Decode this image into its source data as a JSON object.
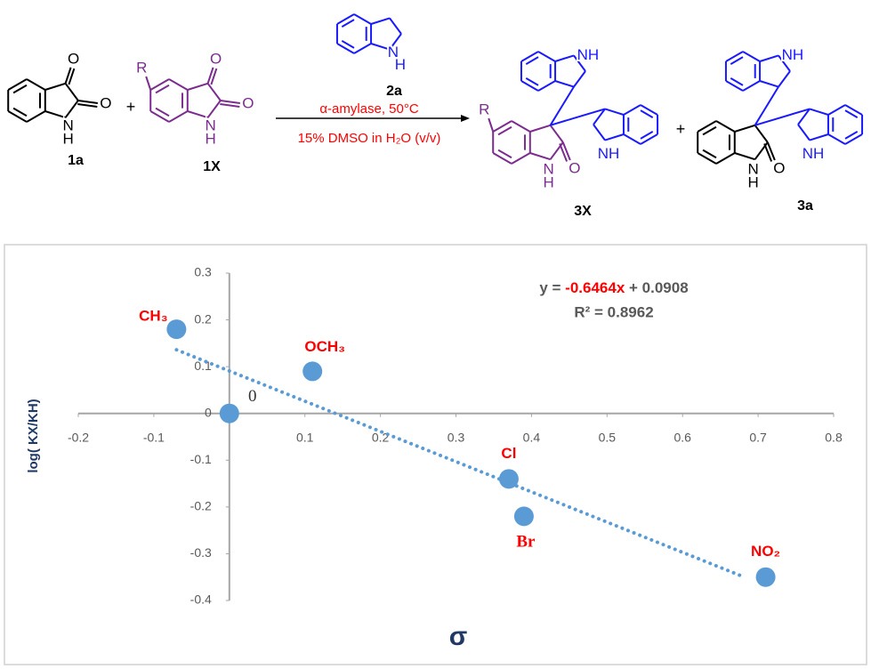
{
  "scheme": {
    "compounds": [
      {
        "label": "1a",
        "atoms": [
          "O",
          "O",
          "N",
          "H"
        ]
      },
      {
        "label": "1X",
        "atoms": [
          "R",
          "O",
          "O",
          "N",
          "H"
        ]
      },
      {
        "label": "2a",
        "atoms": [
          "N",
          "H"
        ]
      },
      {
        "label": "3X",
        "atoms": [
          "R",
          "NH",
          "N",
          "H",
          "O",
          "NH"
        ]
      },
      {
        "label": "3a",
        "atoms": [
          "NH",
          "N",
          "H",
          "O",
          "NH"
        ]
      }
    ],
    "plus_signs": [
      "+",
      "+"
    ],
    "conditions": [
      "α-amylase, 50°C",
      "15% DMSO in H₂O (v/v)"
    ]
  },
  "chart_data": {
    "type": "scatter",
    "x": [
      -0.07,
      0,
      0.11,
      0.37,
      0.39,
      0.71
    ],
    "values": [
      0.18,
      0,
      0.09,
      -0.14,
      -0.22,
      -0.35
    ],
    "point_labels": [
      "CH₃",
      "0",
      "OCH₃",
      "Cl",
      "Br",
      "NO₂"
    ],
    "color": "#5b9bd5",
    "label_color": "#ff0000",
    "xlim": [
      -0.2,
      0.8
    ],
    "ylim": [
      -0.4,
      0.3
    ],
    "xticks": [
      -0.2,
      -0.1,
      0.1,
      0.2,
      0.3,
      0.4,
      0.5,
      0.6,
      0.7,
      0.8
    ],
    "yticks": [
      -0.4,
      -0.3,
      -0.2,
      -0.1,
      0,
      0.1,
      0.2,
      0.3
    ],
    "x_label": "σ",
    "y_label": "log( KX/KH)",
    "trendline": {
      "equation_parts": [
        "y = ",
        "-0.6464x",
        " + 0.0908"
      ],
      "r_squared": "R² = 0.8962",
      "slope": -0.6464,
      "intercept": 0.0908,
      "x": [
        -0.07,
        0.68
      ]
    }
  }
}
